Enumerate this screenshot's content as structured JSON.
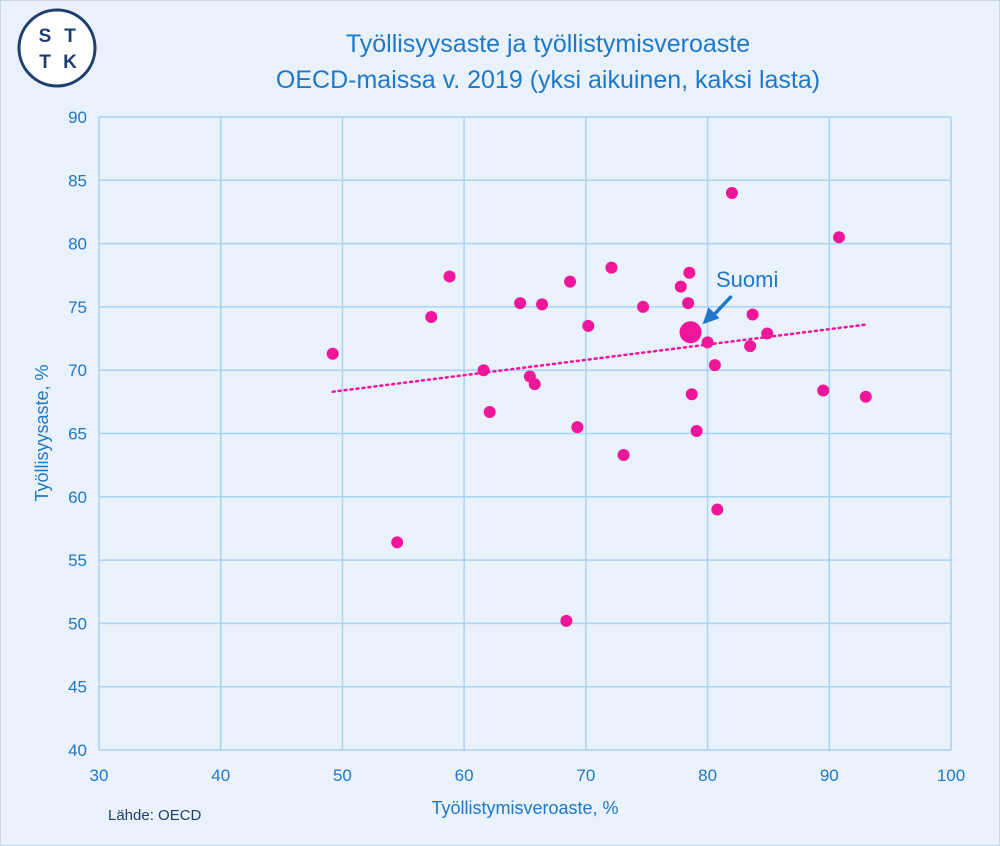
{
  "logo": {
    "letters": [
      "S",
      "T",
      "T",
      "K"
    ]
  },
  "chart_data": {
    "type": "scatter",
    "title": [
      "Työllisyysaste ja työllistymisveroaste",
      "OECD-maissa v. 2019 (yksi aikuinen,  kaksi lasta)"
    ],
    "xlabel": "Työllistymisveroaste,  %",
    "ylabel": "Työllisyysaste, %",
    "xlim": [
      30,
      100
    ],
    "ylim": [
      40,
      90
    ],
    "xticks": [
      30,
      40,
      50,
      60,
      70,
      80,
      90,
      100
    ],
    "yticks": [
      40,
      45,
      50,
      55,
      60,
      65,
      70,
      75,
      80,
      85,
      90
    ],
    "grid": true,
    "source": "Lähde: OECD",
    "colors": {
      "points": "#f0169b",
      "axis": "#1f78c8",
      "grid": "#a9d3f2",
      "background": "#e9f1fa"
    },
    "points": [
      [
        49.2,
        71.3
      ],
      [
        54.5,
        56.4
      ],
      [
        57.3,
        74.2
      ],
      [
        58.8,
        77.4
      ],
      [
        61.6,
        70.0
      ],
      [
        62.1,
        66.7
      ],
      [
        64.6,
        75.3
      ],
      [
        65.4,
        69.5
      ],
      [
        65.8,
        68.9
      ],
      [
        66.4,
        75.2
      ],
      [
        68.4,
        50.2
      ],
      [
        68.7,
        77.0
      ],
      [
        69.3,
        65.5
      ],
      [
        70.2,
        73.5
      ],
      [
        72.1,
        78.1
      ],
      [
        73.1,
        63.3
      ],
      [
        74.7,
        75.0
      ],
      [
        77.8,
        76.6
      ],
      [
        78.4,
        75.3
      ],
      [
        78.5,
        77.7
      ],
      [
        78.7,
        68.1
      ],
      [
        79.1,
        65.2
      ],
      [
        80.0,
        72.2
      ],
      [
        80.6,
        70.4
      ],
      [
        80.8,
        59.0
      ],
      [
        82.0,
        84.0
      ],
      [
        83.5,
        71.9
      ],
      [
        83.7,
        74.4
      ],
      [
        84.9,
        72.9
      ],
      [
        89.5,
        68.4
      ],
      [
        90.8,
        80.5
      ],
      [
        93.0,
        67.9
      ]
    ],
    "highlight": {
      "label": "Suomi",
      "x": 78.6,
      "y": 73.0
    },
    "trendline": {
      "style": "dotted",
      "x": [
        49.2,
        93.0
      ],
      "y": [
        68.3,
        73.6
      ]
    }
  }
}
